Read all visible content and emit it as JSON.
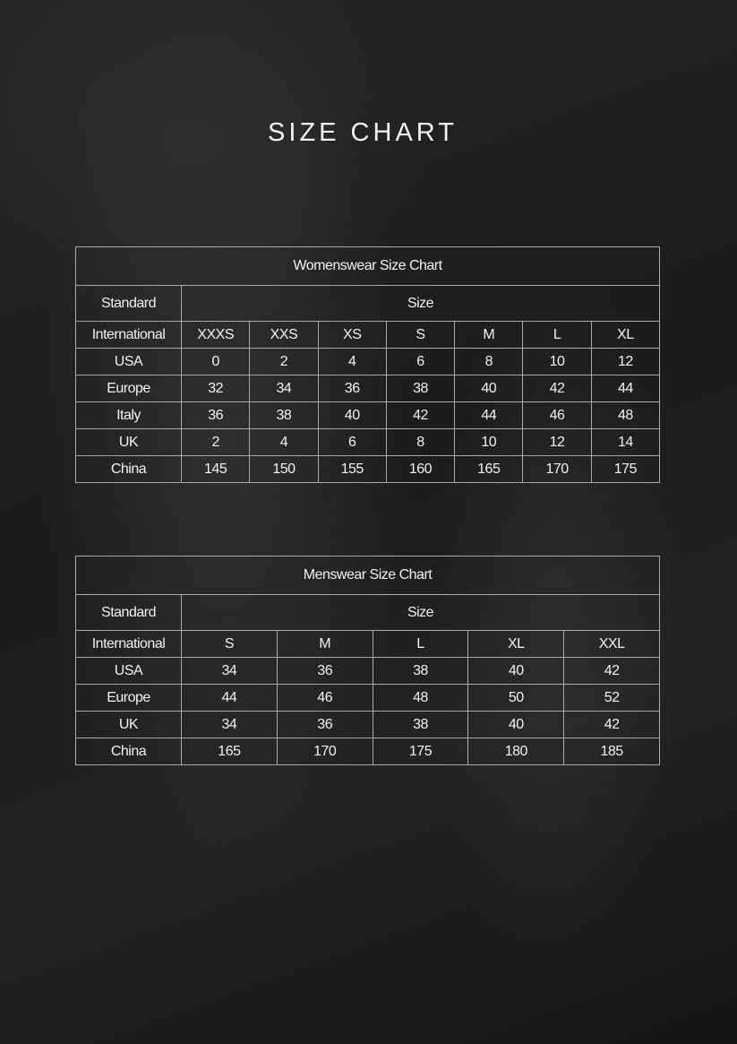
{
  "title": "SIZE CHART",
  "women": {
    "caption": "Womenswear Size Chart",
    "standard_label": "Standard",
    "size_label": "Size",
    "rows": [
      {
        "label": "International",
        "values": [
          "XXXS",
          "XXS",
          "XS",
          "S",
          "M",
          "L",
          "XL"
        ]
      },
      {
        "label": "USA",
        "values": [
          "0",
          "2",
          "4",
          "6",
          "8",
          "10",
          "12"
        ]
      },
      {
        "label": "Europe",
        "values": [
          "32",
          "34",
          "36",
          "38",
          "40",
          "42",
          "44"
        ]
      },
      {
        "label": "Italy",
        "values": [
          "36",
          "38",
          "40",
          "42",
          "44",
          "46",
          "48"
        ]
      },
      {
        "label": "UK",
        "values": [
          "2",
          "4",
          "6",
          "8",
          "10",
          "12",
          "14"
        ]
      },
      {
        "label": "China",
        "values": [
          "145",
          "150",
          "155",
          "160",
          "165",
          "170",
          "175"
        ]
      }
    ]
  },
  "men": {
    "caption": "Menswear Size Chart",
    "standard_label": "Standard",
    "size_label": "Size",
    "rows": [
      {
        "label": "International",
        "values": [
          "S",
          "M",
          "L",
          "XL",
          "XXL"
        ]
      },
      {
        "label": "USA",
        "values": [
          "34",
          "36",
          "38",
          "40",
          "42"
        ]
      },
      {
        "label": "Europe",
        "values": [
          "44",
          "46",
          "48",
          "50",
          "52"
        ]
      },
      {
        "label": "UK",
        "values": [
          "34",
          "36",
          "38",
          "40",
          "42"
        ]
      },
      {
        "label": "China",
        "values": [
          "165",
          "170",
          "175",
          "180",
          "185"
        ]
      }
    ]
  }
}
